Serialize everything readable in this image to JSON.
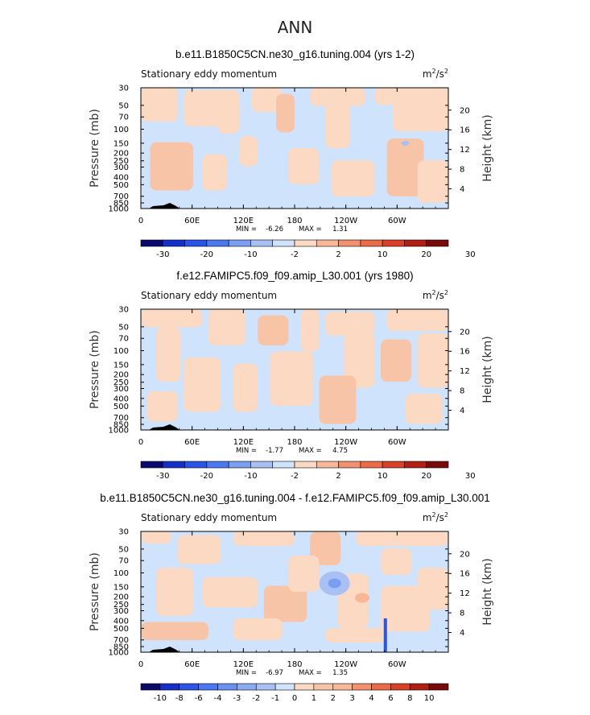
{
  "figure_title": "ANN",
  "chart_data": [
    {
      "type": "heatmap",
      "title": "b.e11.B1850C5CN.ne30_g16.tuning.004 (yrs 1-2)",
      "subtitle": "Stationary eddy momentum",
      "units": "m",
      "units_exp": "2",
      "units_den": "/s",
      "units_den_exp": "2",
      "xlabel": "",
      "ylabel": "Pressure (mb)",
      "y2label": "Height (km)",
      "x_ticks": [
        "0",
        "60E",
        "120E",
        "180",
        "120W",
        "60W"
      ],
      "y_ticks": [
        "30",
        "50",
        "70",
        "100",
        "150",
        "200",
        "250",
        "300",
        "400",
        "500",
        "700",
        "850",
        "1000"
      ],
      "y2_ticks": [
        "4",
        "8",
        "12",
        "16",
        "20"
      ],
      "min_label": "MIN =",
      "min_value": "-6.26",
      "max_label": "MAX =",
      "max_value": "1.31",
      "colorbar_labels": [
        "-30",
        "-20",
        "-10",
        "-2",
        "2",
        "10",
        "20",
        "30"
      ],
      "colorbar_colors": [
        "#0a0a6e",
        "#1430c8",
        "#2a55e6",
        "#4a78f0",
        "#7a9ef2",
        "#a8c0f4",
        "#cfe3fc",
        "#fbd9c2",
        "#f8b898",
        "#f29070",
        "#eb6a48",
        "#d84028",
        "#b01e14",
        "#7a0a0a"
      ]
    },
    {
      "type": "heatmap",
      "title": "f.e12.FAMIPC5.f09_f09.amip_L30.001 (yrs 1980)",
      "subtitle": "Stationary eddy momentum",
      "units": "m",
      "units_exp": "2",
      "units_den": "/s",
      "units_den_exp": "2",
      "xlabel": "",
      "ylabel": "Pressure (mb)",
      "y2label": "Height (km)",
      "x_ticks": [
        "0",
        "60E",
        "120E",
        "180",
        "120W",
        "60W"
      ],
      "y_ticks": [
        "30",
        "50",
        "70",
        "100",
        "150",
        "200",
        "250",
        "300",
        "400",
        "500",
        "700",
        "850",
        "1000"
      ],
      "y2_ticks": [
        "4",
        "8",
        "12",
        "16",
        "20"
      ],
      "min_label": "MIN =",
      "min_value": "-1.77",
      "max_label": "MAX =",
      "max_value": "4.75",
      "colorbar_labels": [
        "-30",
        "-20",
        "-10",
        "-2",
        "2",
        "10",
        "20",
        "30"
      ],
      "colorbar_colors": [
        "#0a0a6e",
        "#1430c8",
        "#2a55e6",
        "#4a78f0",
        "#7a9ef2",
        "#a8c0f4",
        "#cfe3fc",
        "#fbd9c2",
        "#f8b898",
        "#f29070",
        "#eb6a48",
        "#d84028",
        "#b01e14",
        "#7a0a0a"
      ]
    },
    {
      "type": "heatmap",
      "title": "b.e11.B1850C5CN.ne30_g16.tuning.004 - f.e12.FAMIPC5.f09_f09.amip_L30.001",
      "subtitle": "Stationary eddy momentum",
      "units": "m",
      "units_exp": "2",
      "units_den": "/s",
      "units_den_exp": "2",
      "xlabel": "",
      "ylabel": "Pressure (mb)",
      "y2label": "Height (km)",
      "x_ticks": [
        "0",
        "60E",
        "120E",
        "180",
        "120W",
        "60W"
      ],
      "y_ticks": [
        "30",
        "50",
        "70",
        "100",
        "150",
        "200",
        "250",
        "300",
        "400",
        "500",
        "700",
        "850",
        "1000"
      ],
      "y2_ticks": [
        "4",
        "8",
        "12",
        "16",
        "20"
      ],
      "min_label": "MIN =",
      "min_value": "-6.97",
      "max_label": "MAX =",
      "max_value": "1.35",
      "colorbar_labels": [
        "-10",
        "-8",
        "-6",
        "-4",
        "-3",
        "-2",
        "-1",
        "0",
        "1",
        "2",
        "3",
        "4",
        "6",
        "8",
        "10"
      ],
      "colorbar_colors": [
        "#0a0a6e",
        "#1430c8",
        "#2a55e6",
        "#4a78f0",
        "#6a90f0",
        "#8aaaf2",
        "#a8c0f4",
        "#cfe3fc",
        "#fbd9c2",
        "#f8c4a8",
        "#f8b898",
        "#f29070",
        "#eb6a48",
        "#d84028",
        "#b01e14",
        "#7a0a0a"
      ]
    }
  ]
}
